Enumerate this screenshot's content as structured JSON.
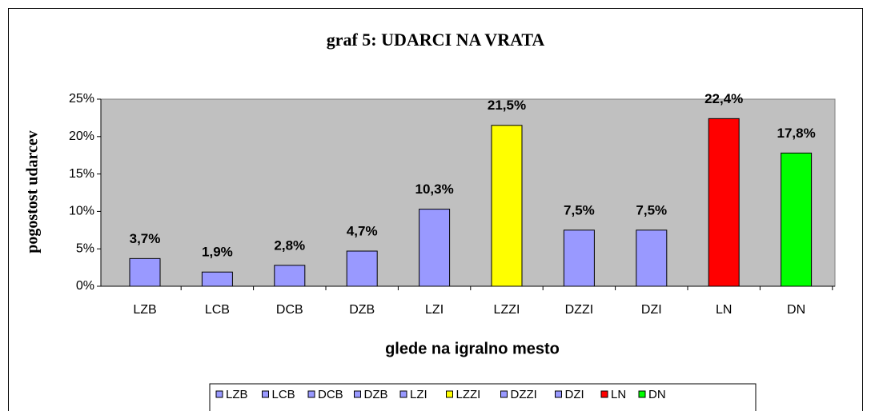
{
  "chart_data": {
    "type": "bar",
    "title": "graf 5: UDARCI NA VRATA",
    "ylabel": "pogostost udarcev",
    "xlabel": "glede na igralno mesto",
    "categories": [
      "LZB",
      "LCB",
      "DCB",
      "DZB",
      "LZI",
      "LZZI",
      "DZZI",
      "DZI",
      "LN",
      "DN"
    ],
    "values": [
      3.7,
      1.9,
      2.8,
      4.7,
      10.3,
      21.5,
      7.5,
      7.5,
      22.4,
      17.8
    ],
    "value_labels": [
      "3,7%",
      "1,9%",
      "2,8%",
      "4,7%",
      "10,3%",
      "21,5%",
      "7,5%",
      "7,5%",
      "22,4%",
      "17,8%"
    ],
    "colors": [
      "#9999ff",
      "#9999ff",
      "#9999ff",
      "#9999ff",
      "#9999ff",
      "#ffff00",
      "#9999ff",
      "#9999ff",
      "#ff0000",
      "#00ff00"
    ],
    "ylim": [
      0,
      25
    ],
    "yticks": [
      {
        "value": 0,
        "label": "0%"
      },
      {
        "value": 5,
        "label": "5%"
      },
      {
        "value": 10,
        "label": "10%"
      },
      {
        "value": 15,
        "label": "15%"
      },
      {
        "value": 20,
        "label": "20%"
      },
      {
        "value": 25,
        "label": "25%"
      }
    ],
    "legend": "bottom"
  }
}
